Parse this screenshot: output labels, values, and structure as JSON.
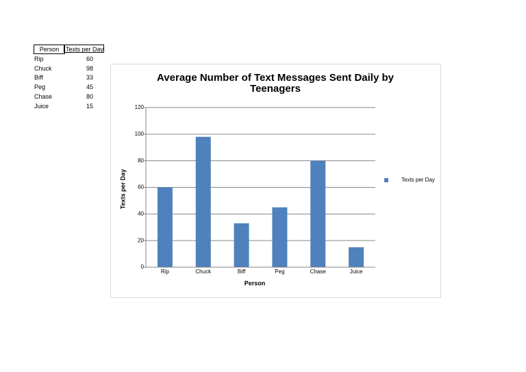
{
  "chart_data": {
    "type": "bar",
    "title": "Average Number of Text Messages Sent Daily by Teenagers",
    "x_label": "Person",
    "y_label": "Texts per Day",
    "categories": [
      "Rip",
      "Chuck",
      "Biff",
      "Peg",
      "Chase",
      "Juice"
    ],
    "series": [
      {
        "name": "Texts per Day",
        "color": "#4f81bd",
        "values": [
          60,
          98,
          33,
          45,
          80,
          15
        ]
      }
    ],
    "ylim": [
      0,
      120
    ],
    "yticks": [
      0,
      20,
      40,
      60,
      80,
      100,
      120
    ],
    "grid": true,
    "legend": "right"
  }
}
